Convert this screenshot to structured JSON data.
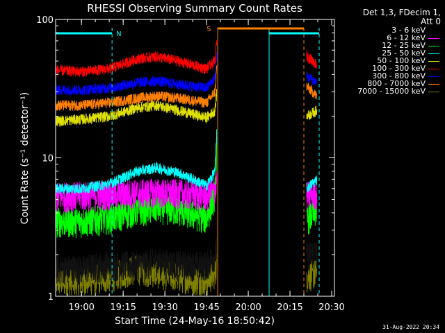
{
  "chart_data": {
    "type": "line",
    "title": "RHESSI Observing Summary Count Rates",
    "xlabel": "Start Time (24-May-16 18:50:42)",
    "ylabel": "Count Rate (s⁻¹ detector⁻¹)",
    "yscale": "log",
    "ylim": [
      1,
      100
    ],
    "y_ticks": [
      1,
      10,
      100
    ],
    "y_tick_labels": [
      "1",
      "10",
      "100"
    ],
    "xlim": [
      "18:50:42",
      "20:31:00"
    ],
    "x_ticks": [
      "19:00",
      "19:15",
      "19:30",
      "19:45",
      "20:00",
      "20:15",
      "20:30"
    ],
    "x_tick_labels": [
      "19:00",
      "19:15",
      "19:30",
      "19:45",
      "20:00",
      "20:15",
      "20:30"
    ],
    "grid": false,
    "legend_header": [
      "Det 1,3, FDecim 1,",
      "Att 0"
    ],
    "legend_position": "right",
    "flags": [
      {
        "label": "N",
        "start": "18:50:42",
        "end": "19:11:00",
        "color": "#00ffff"
      },
      {
        "label": "S",
        "start": "19:49:00",
        "end": "20:20:00",
        "color": "#ff8000"
      },
      {
        "label": "",
        "start": "20:07:30",
        "end": "20:25:30",
        "color": "#00ffff"
      }
    ],
    "vertical_markers": [
      {
        "time": "19:11:00",
        "color": "#00ffff",
        "style": "dashed"
      },
      {
        "time": "19:49:00",
        "color": "#ff8000",
        "style": "solid"
      },
      {
        "time": "20:07:30",
        "color": "#00ffff",
        "style": "solid"
      },
      {
        "time": "20:20:00",
        "color": "#ff8000",
        "style": "dashed"
      },
      {
        "time": "20:25:30",
        "color": "#00ffff",
        "style": "dashed"
      }
    ],
    "time_knots": [
      "18:50:42",
      "19:00",
      "19:10",
      "19:20",
      "19:27",
      "19:35",
      "19:45",
      "19:48",
      "19:48:40",
      "20:21",
      "20:24:40"
    ],
    "series": [
      {
        "name": "3 - 6 keV",
        "color": "#000000",
        "values": [
          1.6,
          1.6,
          1.7,
          1.7,
          1.8,
          1.7,
          1.7,
          2.0,
          2.2,
          2.0,
          2.1
        ]
      },
      {
        "name": "6 - 12 keV",
        "color": "#ff00ff",
        "values": [
          5.3,
          5.4,
          5.5,
          5.6,
          5.7,
          5.6,
          5.4,
          6.0,
          7.0,
          5.4,
          5.6
        ]
      },
      {
        "name": "12 - 25 keV",
        "color": "#00ff00",
        "values": [
          3.5,
          3.5,
          3.7,
          4.2,
          4.4,
          4.2,
          3.7,
          5.5,
          12.0,
          3.6,
          4.2
        ]
      },
      {
        "name": "25 - 50 keV",
        "color": "#00ffff",
        "values": [
          6.0,
          6.0,
          6.5,
          8.0,
          8.5,
          7.8,
          6.3,
          8.0,
          16.0,
          6.0,
          7.0
        ]
      },
      {
        "name": "50 - 100 keV",
        "color": "#e0e000",
        "values": [
          18.5,
          19.0,
          20.0,
          23.0,
          24.0,
          22.0,
          19.5,
          22.0,
          30.0,
          20.0,
          22.0
        ]
      },
      {
        "name": "100 - 300 keV",
        "color": "#ff0000",
        "values": [
          43.0,
          42.0,
          44.0,
          52.0,
          54.0,
          50.0,
          44.0,
          50.0,
          72.0,
          55.0,
          47.0
        ]
      },
      {
        "name": "300 - 800 keV",
        "color": "#0000ff",
        "values": [
          31.0,
          31.0,
          32.0,
          35.0,
          36.0,
          34.0,
          32.0,
          38.0,
          55.0,
          39.0,
          35.0
        ]
      },
      {
        "name": "800 - 7000 keV",
        "color": "#ff8000",
        "values": [
          24.0,
          24.0,
          25.0,
          27.0,
          28.0,
          27.0,
          25.0,
          30.0,
          45.0,
          33.0,
          28.0
        ]
      },
      {
        "name": "7000 - 15000 keV",
        "color": "#808000",
        "values": [
          1.3,
          1.3,
          1.4,
          1.6,
          1.5,
          1.4,
          1.3,
          1.5,
          1.7,
          1.4,
          1.5
        ]
      }
    ]
  },
  "timestamp": "31-Aug-2022 20:34"
}
